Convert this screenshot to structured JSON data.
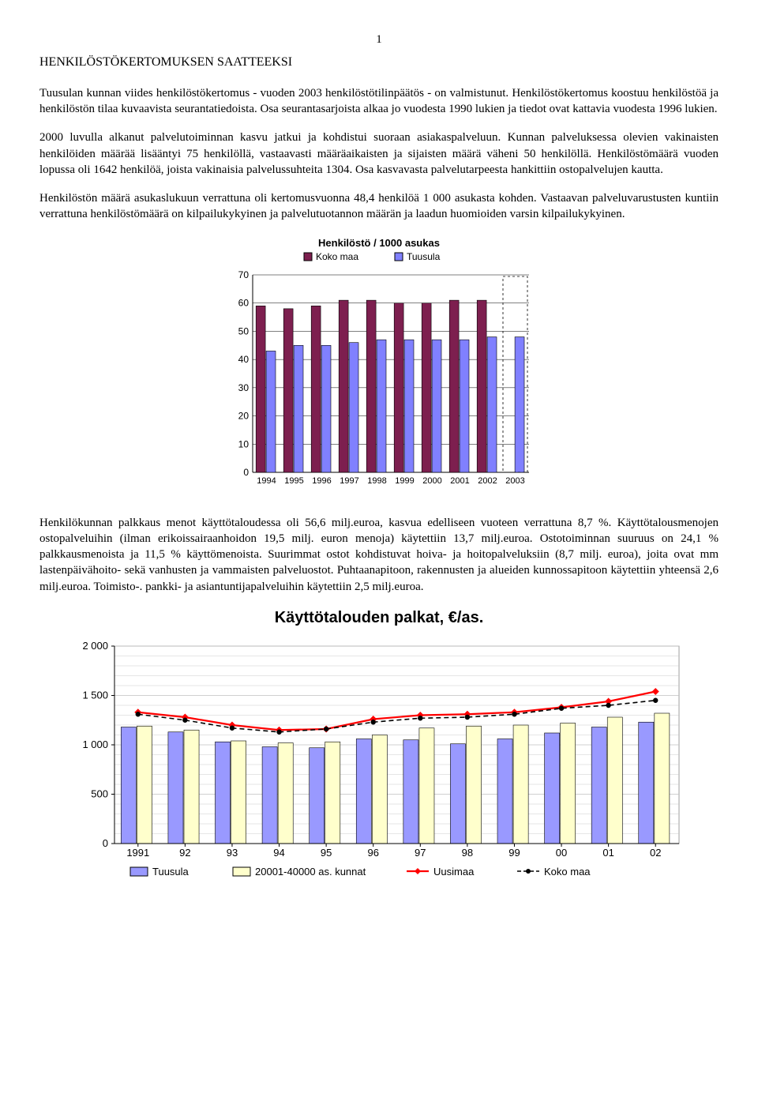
{
  "page_number": "1",
  "heading": "HENKILÖSTÖKERTOMUKSEN SAATTEEKSI",
  "para1": "Tuusulan kunnan viides henkilöstökertomus - vuoden 2003 henkilöstötilinpäätös - on valmistunut. Henkilöstökertomus koostuu henkilöstöä ja henkilöstön tilaa kuvaavista seurantatiedoista. Osa seurantasarjoista alkaa jo vuodesta 1990 lukien ja tiedot ovat kattavia vuodesta 1996 lukien.",
  "para2": "2000 luvulla alkanut palvelutoiminnan kasvu jatkui ja kohdistui suoraan asiakaspalveluun. Kunnan palveluksessa olevien vakinaisten henkilöiden määrää lisääntyi 75 henkilöllä, vastaavasti määräaikaisten ja sijaisten määrä väheni 50 henkilöllä. Henkilöstömäärä vuoden lopussa oli 1642 henkilöä, joista vakinaisia palvelussuhteita 1304. Osa kasvavasta palvelutarpeesta hankittiin ostopalvelujen kautta.",
  "para3": "Henkilöstön määrä asukaslukuun verrattuna oli kertomusvuonna 48,4 henkilöä 1 000 asukasta kohden. Vastaavan palveluvarustusten kuntiin verrattuna henkilöstömäärä on kilpailukykyinen ja palvelutuotannon määrän ja laadun huomioiden varsin kilpailukykyinen.",
  "para4": "Henkilökunnan palkkaus menot käyttötaloudessa oli 56,6 milj.euroa, kasvua edelliseen vuoteen verrattuna 8,7 %. Käyttötalousmenojen ostopalveluihin (ilman erikoissairaanhoidon 19,5 milj. euron menoja) käytettiin 13,7 milj.euroa. Ostotoiminnan suuruus on 24,1 % palkkausmenoista ja 11,5 % käyttömenoista. Suurimmat ostot kohdistuvat hoiva- ja hoitopalveluksiin (8,7 milj. euroa), joita ovat mm lastenpäivähoito- sekä vanhusten ja vammaisten palveluostot. Puhtaanapitoon, rakennusten ja alueiden kunnossapitoon käytettiin yhteensä 2,6 milj.euroa. Toimisto-. pankki- ja asiantuntijapalveluihin käytettiin 2,5 milj.euroa.",
  "chart1": {
    "title": "Henkilöstö / 1000 asukas",
    "legend": [
      {
        "label": "Koko maa",
        "color": "#7d1f4f"
      },
      {
        "label": "Tuusula",
        "color": "#8080ff"
      }
    ],
    "years": [
      "1994",
      "1995",
      "1996",
      "1997",
      "1998",
      "1999",
      "2000",
      "2001",
      "2002",
      "2003"
    ],
    "koko_maa": [
      59,
      58,
      59,
      61,
      61,
      60,
      60,
      61,
      61,
      null
    ],
    "tuusula": [
      43,
      45,
      45,
      46,
      47,
      47,
      47,
      47,
      48,
      48
    ],
    "ylim": [
      0,
      70
    ],
    "ytick_step": 10,
    "bar_colors": {
      "koko_maa": "#7d1f4f",
      "tuusula": "#8080ff"
    },
    "background": "#ffffff",
    "grid_color": "#000000",
    "projection_box": true
  },
  "chart2": {
    "title": "Käyttötalouden palkat, €/as.",
    "years": [
      "1991",
      "92",
      "93",
      "94",
      "95",
      "96",
      "97",
      "98",
      "99",
      "00",
      "01",
      "02"
    ],
    "tuusula": [
      1180,
      1130,
      1030,
      980,
      970,
      1060,
      1050,
      1010,
      1060,
      1120,
      1180,
      1230
    ],
    "kunnat": [
      1190,
      1150,
      1040,
      1020,
      1030,
      1100,
      1170,
      1190,
      1200,
      1220,
      1280,
      1320
    ],
    "uusimaa": [
      1330,
      1280,
      1200,
      1150,
      1160,
      1260,
      1300,
      1310,
      1330,
      1380,
      1440,
      1540
    ],
    "koko_maa": [
      1310,
      1250,
      1170,
      1130,
      1160,
      1230,
      1270,
      1280,
      1310,
      1370,
      1400,
      1450
    ],
    "ylim": [
      0,
      2000
    ],
    "ytick_step": 500,
    "colors": {
      "tuusula_bar": "#9999ff",
      "kunnat_bar": "#ffffcc",
      "uusimaa_line": "#ff0000",
      "koko_maa_line": "#000000"
    },
    "legend": [
      {
        "label": "Tuusula",
        "type": "box",
        "color": "#9999ff"
      },
      {
        "label": "20001-40000 as. kunnat",
        "type": "box",
        "color": "#ffffcc"
      },
      {
        "label": "Uusimaa",
        "type": "line",
        "color": "#ff0000"
      },
      {
        "label": "Koko maa",
        "type": "dash",
        "color": "#000000"
      }
    ],
    "grid_color": "#c0c0c0",
    "background": "#ffffff"
  }
}
